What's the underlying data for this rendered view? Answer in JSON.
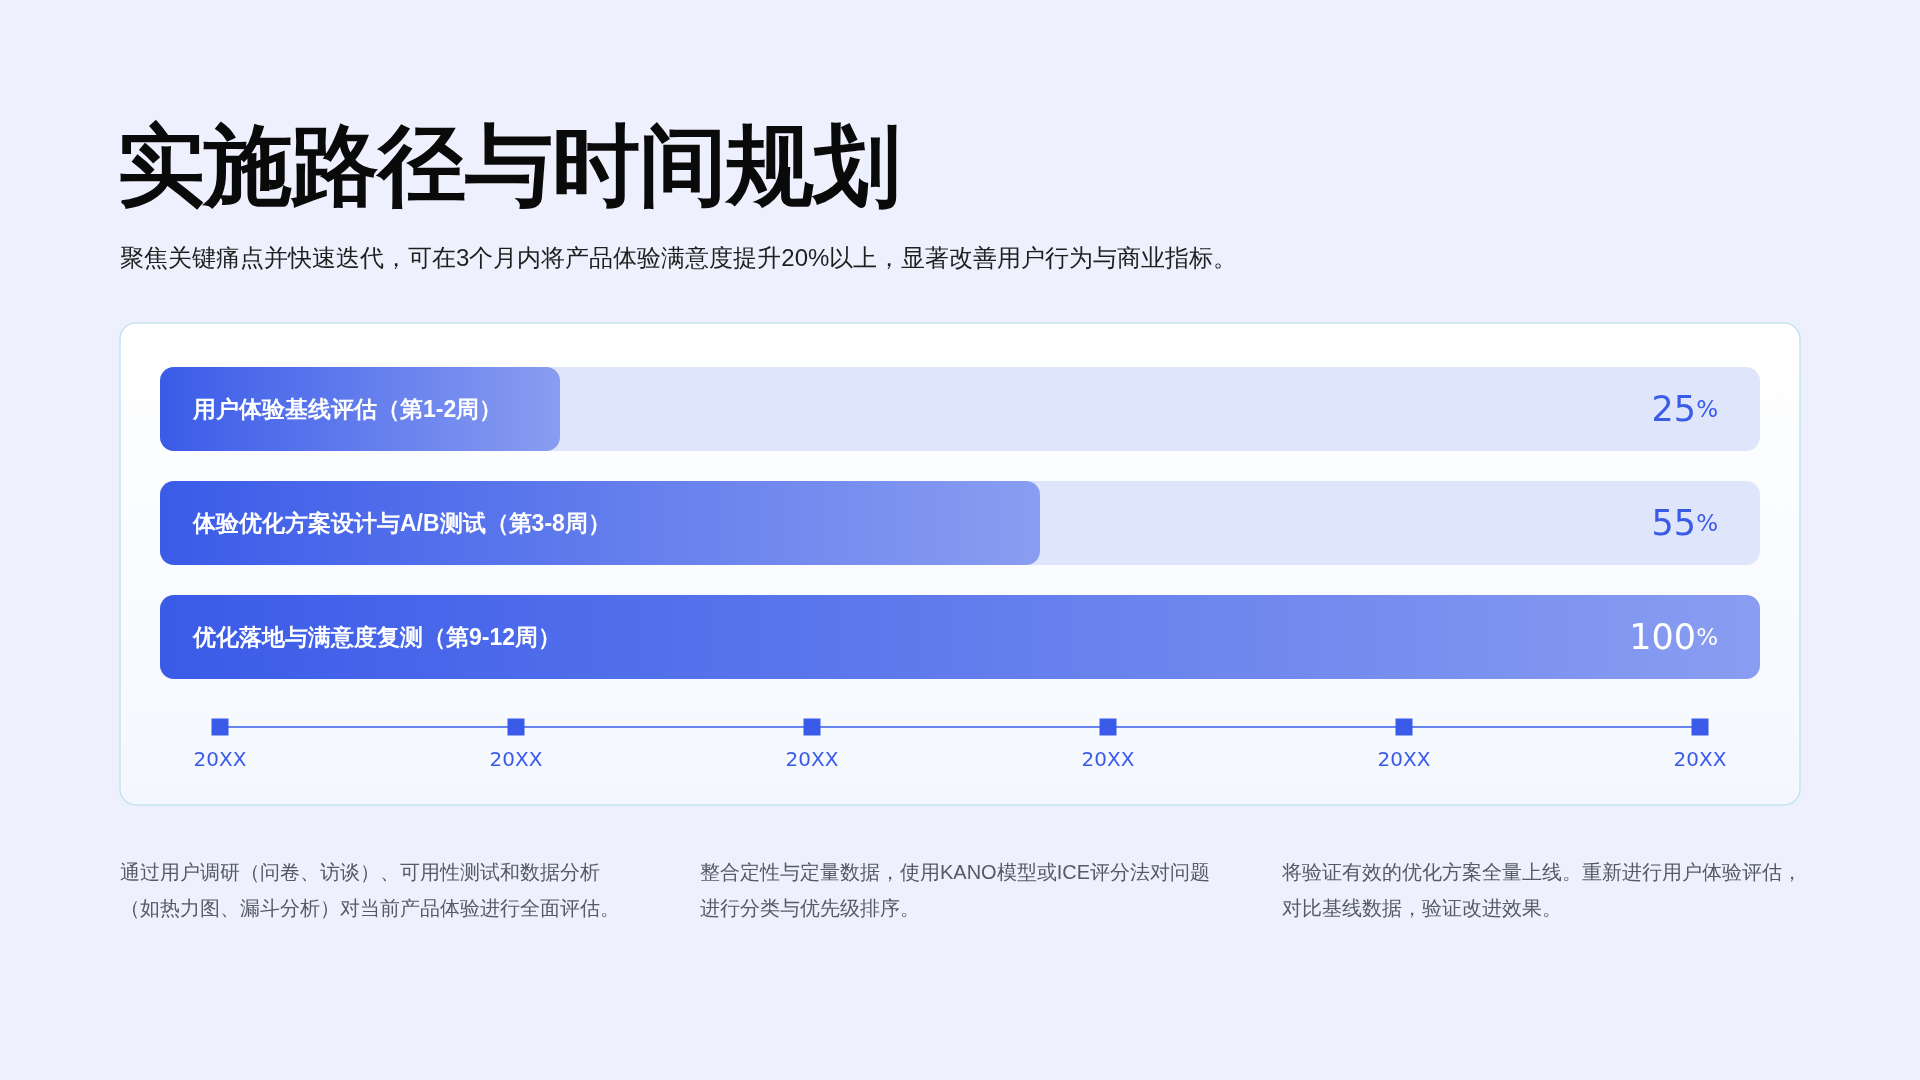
{
  "chart_data": {
    "type": "bar",
    "orientation": "horizontal",
    "title": "实施路径与时间规划",
    "subtitle": "聚焦关键痛点并快速迭代，可在3个月内将产品体验满意度提升20%以上，显著改善用户行为与商业指标。",
    "categories": [
      "用户体验基线评估（第1-2周）",
      "体验优化方案设计与A/B测试（第3-8周）",
      "优化落地与满意度复测（第9-12周）"
    ],
    "values": [
      25,
      55,
      100
    ],
    "value_labels": [
      "25%",
      "55%",
      "100%"
    ],
    "color": "#3a5be8",
    "xlim": [
      0,
      100
    ],
    "annotations": [
      "20XX",
      "20XX",
      "20XX",
      "20XX",
      "20XX",
      "20XX",
      "通过用户调研（问卷、访谈）、可用性测试和数据分析（如热力图、漏斗分析）对当前产品体验进行全面评估。",
      "整合定性与定量数据，使用KANO模型或ICE评分法对问题进行分类与优先级排序。",
      "将验证有效的优化方案全量上线。重新进行用户体验评估，对比基线数据，验证改进效果。"
    ]
  }
}
